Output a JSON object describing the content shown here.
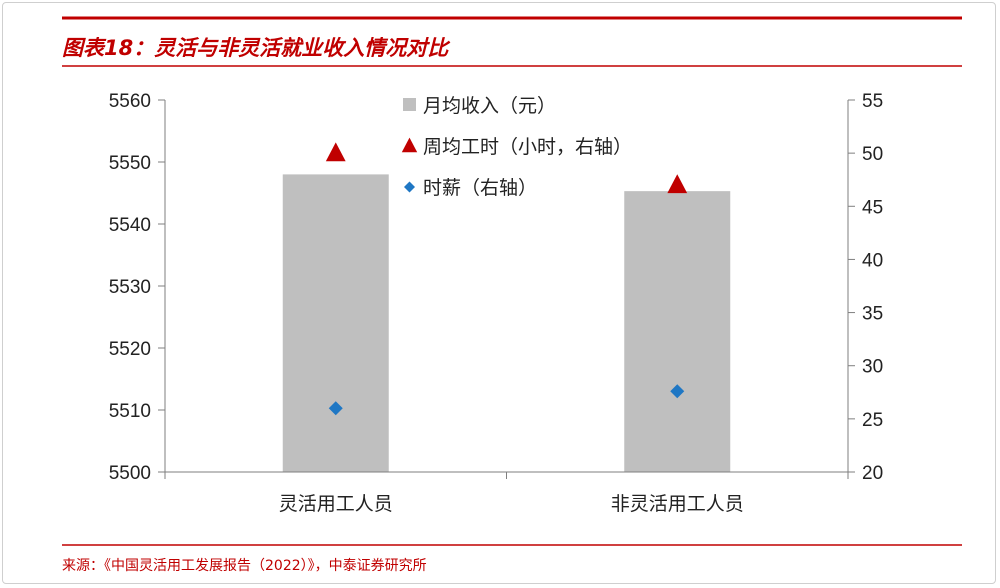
{
  "header": {
    "title": "图表18：灵活与非灵活就业收入情况对比"
  },
  "footer": {
    "source": "来源：《中国灵活用工发展报告（2022）》，中泰证券研究所"
  },
  "colors": {
    "accent": "#c00000",
    "bar": "#bfbfbf",
    "triangle": "#c00000",
    "diamond": "#1f77c4",
    "axis": "#7f7f7f"
  },
  "chart_data": {
    "type": "bar",
    "categories": [
      "灵活用工人员",
      "非灵活用工人员"
    ],
    "ylim": [
      5500,
      5560
    ],
    "y_ticks": [
      "5560",
      "5550",
      "5540",
      "5530",
      "5520",
      "5510",
      "5500"
    ],
    "y2lim": [
      20,
      55
    ],
    "y2_ticks": [
      "55",
      "50",
      "45",
      "40",
      "35",
      "30",
      "25",
      "20"
    ],
    "series": [
      {
        "name": "月均收入（元）",
        "type": "bar",
        "axis": "left",
        "marker": "square",
        "values": [
          5548,
          5545.3
        ]
      },
      {
        "name": "周均工时（小时，右轴）",
        "type": "scatter",
        "axis": "right",
        "marker": "triangle",
        "values": [
          50,
          47
        ]
      },
      {
        "name": "时薪（右轴）",
        "type": "scatter",
        "axis": "right",
        "marker": "diamond",
        "values": [
          26,
          27.6
        ]
      }
    ],
    "legend_position": "top-center",
    "grid": false
  }
}
